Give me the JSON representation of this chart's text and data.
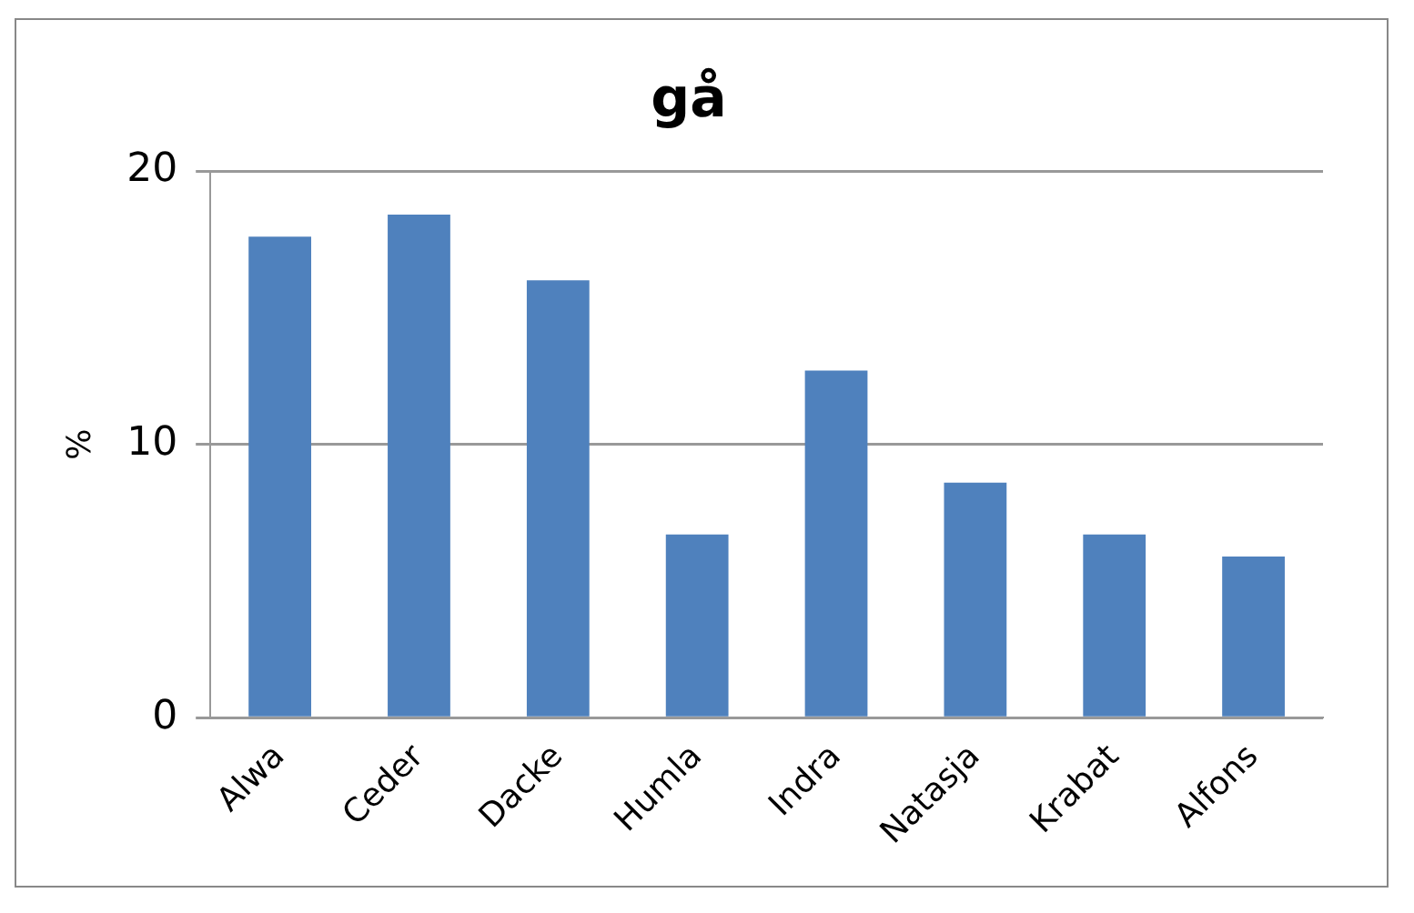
{
  "chart_data": {
    "type": "bar",
    "title": "gå",
    "ylabel": "%",
    "categories": [
      "Alwa",
      "Ceder",
      "Dacke",
      "Humla",
      "Indra",
      "Natasja",
      "Krabat",
      "Alfons"
    ],
    "values": [
      17.6,
      18.4,
      16.0,
      6.7,
      12.7,
      8.6,
      6.7,
      5.9
    ],
    "color": "#4f81bd",
    "ylim": [
      0,
      20
    ],
    "yticks": [
      0,
      10,
      20
    ],
    "grid": "y",
    "legend": false
  }
}
